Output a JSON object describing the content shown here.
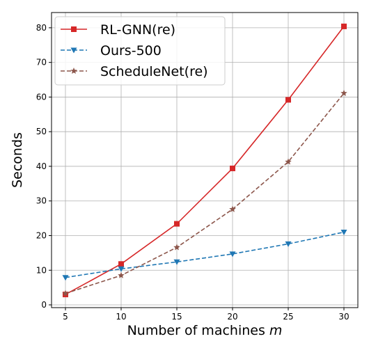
{
  "chart_data": {
    "type": "line",
    "xlabel": "Number of machines",
    "xlabel_var": "m",
    "ylabel": "Seconds",
    "x": [
      5,
      10,
      15,
      20,
      25,
      30
    ],
    "xticks": [
      5,
      10,
      15,
      20,
      25,
      30
    ],
    "yticks": [
      0,
      10,
      20,
      30,
      40,
      50,
      60,
      70,
      80
    ],
    "xlim": [
      3.75,
      31.25
    ],
    "ylim": [
      -0.8,
      84.4
    ],
    "grid": true,
    "legend": "top-left",
    "series": [
      {
        "name": "RL-GNN(re)",
        "values": [
          3.0,
          11.8,
          23.4,
          39.4,
          59.2,
          80.4
        ],
        "color": "#d62728",
        "dash": "solid",
        "marker": "square"
      },
      {
        "name": "Ours-500",
        "values": [
          7.9,
          10.4,
          12.4,
          14.7,
          17.6,
          21.0
        ],
        "color": "#1f77b4",
        "dash": "dashed",
        "marker": "triangle-down"
      },
      {
        "name": "ScheduleNet(re)",
        "values": [
          3.3,
          8.5,
          16.6,
          27.6,
          41.3,
          61.1
        ],
        "color": "#8c564b",
        "dash": "dashed",
        "marker": "star"
      }
    ]
  }
}
